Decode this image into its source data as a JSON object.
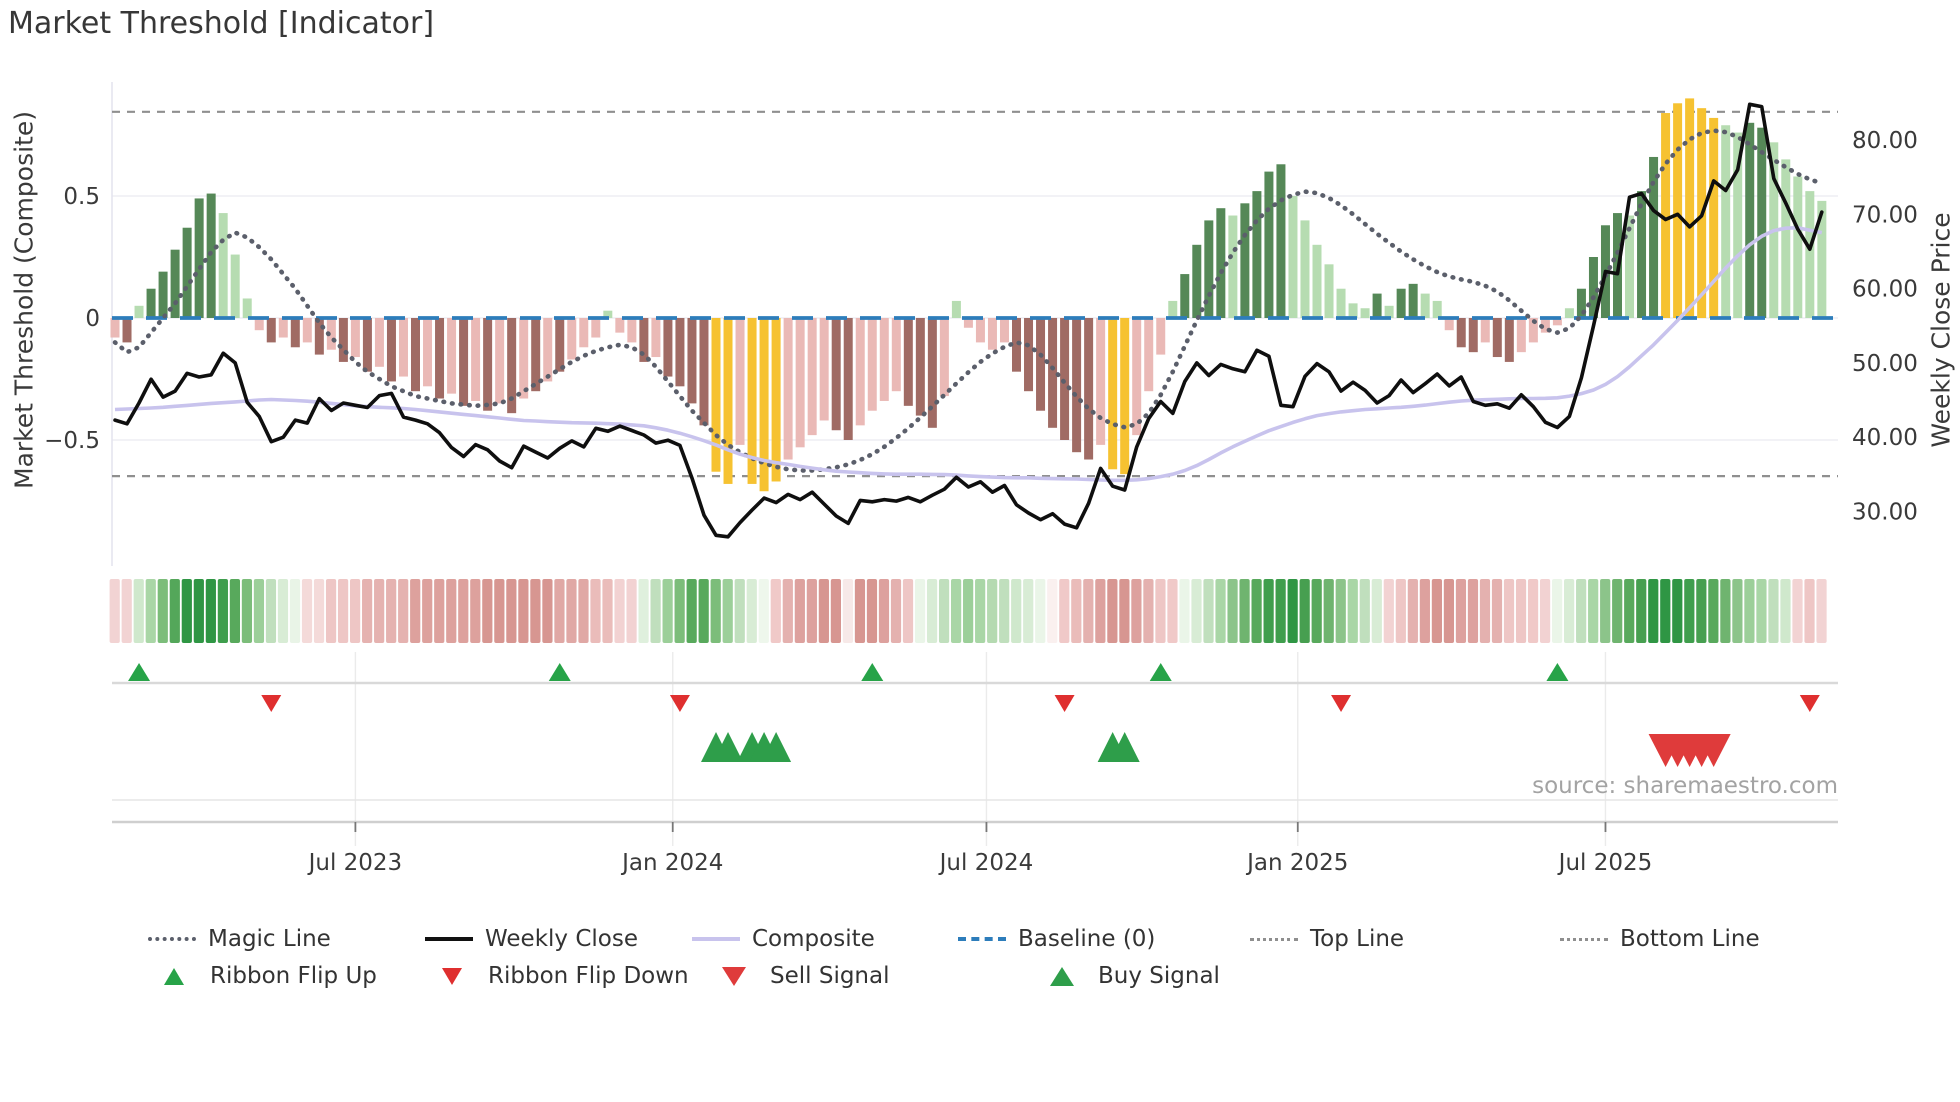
{
  "title": "Market Threshold [Indicator]",
  "source_text": "source: sharemaestro.com",
  "axes": {
    "left_label": "Market Threshold (Composite)",
    "right_label": "Weekly Close Price"
  },
  "legend": {
    "row1": [
      {
        "label": "Magic Line",
        "marker": "dotted-line",
        "color": "#5b5f6b"
      },
      {
        "label": "Weekly Close",
        "marker": "solid-line",
        "color": "#111111"
      },
      {
        "label": "Composite",
        "marker": "solid-line",
        "color": "#c8c3ed"
      },
      {
        "label": "Baseline (0)",
        "marker": "dashed-line",
        "color": "#2d7dbb"
      },
      {
        "label": "Top Line",
        "marker": "fine-dotted-line",
        "color": "#8f8f8f"
      },
      {
        "label": "Bottom Line",
        "marker": "fine-dotted-line",
        "color": "#8f8f8f"
      }
    ],
    "row2": [
      {
        "label": "Ribbon Flip Up",
        "marker": "triangle-up",
        "color": "#27a348"
      },
      {
        "label": "Ribbon Flip Down",
        "marker": "triangle-down",
        "color": "#df2f2f"
      },
      {
        "label": "Sell Signal",
        "marker": "triangle-down",
        "color": "#df3b3b"
      },
      {
        "label": "Buy Signal",
        "marker": "triangle-up",
        "color": "#2e9e4a"
      }
    ]
  },
  "chart_data": {
    "type": "bar",
    "title": "Market Threshold [Indicator]",
    "xlabel": "",
    "ylabel_left": "Market Threshold (Composite)",
    "ylabel_right": "Weekly Close Price",
    "weeks": 143,
    "left_ylim": [
      -1.03,
      0.97
    ],
    "right_ylim": [
      22,
      88
    ],
    "grid": "horizontal-faint",
    "legend_position": "bottom",
    "baseline": 0,
    "top_line": 0.845,
    "bottom_line": -0.648,
    "left_ticks": [
      {
        "label": "0.5",
        "value": 0.5
      },
      {
        "label": "0",
        "value": 0
      },
      {
        "label": "−0.5",
        "value": -0.5
      }
    ],
    "right_ticks": [
      {
        "label": "80.00",
        "value": 80
      },
      {
        "label": "70.00",
        "value": 70
      },
      {
        "label": "60.00",
        "value": 60
      },
      {
        "label": "50.00",
        "value": 50
      },
      {
        "label": "40.00",
        "value": 40
      },
      {
        "label": "30.00",
        "value": 30
      }
    ],
    "x_ticks": [
      {
        "label": "Jul 2023",
        "week": 20
      },
      {
        "label": "Jan 2024",
        "week": 46.4
      },
      {
        "label": "Jul 2024",
        "week": 72.5
      },
      {
        "label": "Jan 2025",
        "week": 98.4
      },
      {
        "label": "Jul 2025",
        "week": 124
      }
    ],
    "palette": {
      "dg": "#558857",
      "lg": "#b6dcb1",
      "pk": "#eab9b6",
      "br": "#a06b64",
      "gd": "#f6c231"
    },
    "colors": {
      "magic_line": "#5b5f6b",
      "weekly_close": "#0f0f0f",
      "composite": "#c8c3ed",
      "baseline": "#2d7dbb",
      "band_lines": "#8f8f8f",
      "grid": "#ededf4",
      "signal_up": "#27a348",
      "signal_down": "#df2f2f",
      "buy": "#2e9e4a",
      "sell": "#df3b3b",
      "source": "#a3a3a3",
      "axis_text": "#3a3a3a"
    },
    "series": [
      {
        "name": "Threshold bars",
        "kind": "bar",
        "axis": "left"
      },
      {
        "name": "Magic Line",
        "kind": "line-dotted",
        "axis": "left"
      },
      {
        "name": "Composite",
        "kind": "line",
        "axis": "left"
      },
      {
        "name": "Weekly Close",
        "kind": "line",
        "axis": "right"
      }
    ],
    "threshold_bars": {
      "values": [
        -0.08,
        -0.1,
        0.05,
        0.12,
        0.19,
        0.28,
        0.37,
        0.49,
        0.51,
        0.43,
        0.26,
        0.08,
        -0.05,
        -0.1,
        -0.08,
        -0.12,
        -0.1,
        -0.15,
        -0.13,
        -0.18,
        -0.16,
        -0.22,
        -0.2,
        -0.26,
        -0.24,
        -0.3,
        -0.28,
        -0.33,
        -0.31,
        -0.36,
        -0.34,
        -0.38,
        -0.35,
        -0.39,
        -0.33,
        -0.3,
        -0.26,
        -0.22,
        -0.17,
        -0.12,
        -0.08,
        0.03,
        -0.06,
        -0.1,
        -0.18,
        -0.16,
        -0.24,
        -0.28,
        -0.35,
        -0.44,
        -0.63,
        -0.68,
        -0.52,
        -0.68,
        -0.71,
        -0.67,
        -0.58,
        -0.53,
        -0.48,
        -0.42,
        -0.46,
        -0.5,
        -0.44,
        -0.38,
        -0.34,
        -0.3,
        -0.36,
        -0.4,
        -0.45,
        -0.32,
        0.07,
        -0.04,
        -0.1,
        -0.13,
        -0.1,
        -0.22,
        -0.3,
        -0.38,
        -0.45,
        -0.5,
        -0.55,
        -0.58,
        -0.52,
        -0.62,
        -0.64,
        -0.48,
        -0.3,
        -0.15,
        0.07,
        0.18,
        0.3,
        0.4,
        0.45,
        0.42,
        0.47,
        0.52,
        0.6,
        0.63,
        0.5,
        0.4,
        0.3,
        0.22,
        0.12,
        0.06,
        0.04,
        0.1,
        0.05,
        0.12,
        0.14,
        0.1,
        0.07,
        -0.05,
        -0.12,
        -0.14,
        -0.1,
        -0.16,
        -0.18,
        -0.14,
        -0.1,
        -0.06,
        -0.03,
        0.04,
        0.12,
        0.25,
        0.38,
        0.43,
        0.42,
        0.52,
        0.66,
        0.84,
        0.88,
        0.9,
        0.86,
        0.82,
        0.79,
        0.76,
        0.8,
        0.78,
        0.72,
        0.65,
        0.58,
        0.52,
        0.48
      ],
      "colors": [
        "pk",
        "br",
        "lg",
        "dg",
        "dg",
        "dg",
        "dg",
        "dg",
        "dg",
        "lg",
        "lg",
        "lg",
        "pk",
        "br",
        "pk",
        "br",
        "pk",
        "br",
        "pk",
        "br",
        "pk",
        "br",
        "pk",
        "br",
        "pk",
        "br",
        "pk",
        "br",
        "pk",
        "br",
        "pk",
        "br",
        "pk",
        "br",
        "pk",
        "br",
        "pk",
        "br",
        "pk",
        "pk",
        "pk",
        "lg",
        "pk",
        "pk",
        "br",
        "pk",
        "br",
        "br",
        "br",
        "br",
        "gd",
        "gd",
        "pk",
        "gd",
        "gd",
        "gd",
        "pk",
        "pk",
        "pk",
        "pk",
        "br",
        "br",
        "pk",
        "pk",
        "pk",
        "pk",
        "br",
        "br",
        "br",
        "pk",
        "lg",
        "pk",
        "pk",
        "pk",
        "pk",
        "br",
        "br",
        "br",
        "br",
        "br",
        "br",
        "br",
        "pk",
        "gd",
        "gd",
        "pk",
        "pk",
        "pk",
        "lg",
        "dg",
        "dg",
        "dg",
        "dg",
        "lg",
        "dg",
        "dg",
        "dg",
        "dg",
        "lg",
        "lg",
        "lg",
        "lg",
        "lg",
        "lg",
        "lg",
        "dg",
        "lg",
        "dg",
        "dg",
        "lg",
        "lg",
        "pk",
        "br",
        "br",
        "pk",
        "br",
        "br",
        "pk",
        "pk",
        "pk",
        "pk",
        "lg",
        "dg",
        "dg",
        "dg",
        "dg",
        "lg",
        "dg",
        "dg",
        "gd",
        "gd",
        "gd",
        "gd",
        "gd",
        "lg",
        "lg",
        "dg",
        "dg",
        "lg",
        "lg",
        "lg",
        "lg",
        "lg"
      ]
    },
    "magic_line": [
      -0.1,
      -0.14,
      -0.12,
      -0.06,
      0.0,
      0.06,
      0.13,
      0.2,
      0.27,
      0.32,
      0.35,
      0.33,
      0.29,
      0.24,
      0.18,
      0.12,
      0.05,
      -0.02,
      -0.08,
      -0.13,
      -0.18,
      -0.22,
      -0.25,
      -0.28,
      -0.3,
      -0.32,
      -0.33,
      -0.34,
      -0.35,
      -0.355,
      -0.36,
      -0.356,
      -0.35,
      -0.33,
      -0.3,
      -0.27,
      -0.24,
      -0.21,
      -0.18,
      -0.155,
      -0.135,
      -0.12,
      -0.11,
      -0.12,
      -0.15,
      -0.2,
      -0.26,
      -0.32,
      -0.38,
      -0.43,
      -0.48,
      -0.52,
      -0.55,
      -0.575,
      -0.595,
      -0.61,
      -0.62,
      -0.625,
      -0.625,
      -0.62,
      -0.612,
      -0.6,
      -0.582,
      -0.558,
      -0.528,
      -0.492,
      -0.452,
      -0.408,
      -0.362,
      -0.315,
      -0.268,
      -0.222,
      -0.18,
      -0.145,
      -0.118,
      -0.1,
      -0.112,
      -0.15,
      -0.205,
      -0.265,
      -0.322,
      -0.372,
      -0.41,
      -0.435,
      -0.448,
      -0.435,
      -0.39,
      -0.315,
      -0.22,
      -0.115,
      -0.01,
      0.09,
      0.185,
      0.268,
      0.34,
      0.4,
      0.448,
      0.482,
      0.505,
      0.518,
      0.512,
      0.492,
      0.462,
      0.425,
      0.385,
      0.345,
      0.308,
      0.272,
      0.24,
      0.212,
      0.188,
      0.17,
      0.158,
      0.148,
      0.132,
      0.108,
      0.072,
      0.03,
      -0.012,
      -0.045,
      -0.06,
      -0.042,
      0.01,
      0.085,
      0.172,
      0.268,
      0.368,
      0.468,
      0.558,
      0.632,
      0.69,
      0.732,
      0.758,
      0.768,
      0.762,
      0.742,
      0.712,
      0.68,
      0.648,
      0.618,
      0.59,
      0.568,
      0.552
    ],
    "composite": [
      -0.375,
      -0.373,
      -0.371,
      -0.369,
      -0.366,
      -0.362,
      -0.358,
      -0.354,
      -0.35,
      -0.347,
      -0.344,
      -0.34,
      -0.336,
      -0.334,
      -0.336,
      -0.338,
      -0.341,
      -0.345,
      -0.35,
      -0.355,
      -0.36,
      -0.363,
      -0.366,
      -0.368,
      -0.371,
      -0.375,
      -0.38,
      -0.385,
      -0.39,
      -0.395,
      -0.4,
      -0.405,
      -0.41,
      -0.415,
      -0.42,
      -0.422,
      -0.425,
      -0.427,
      -0.429,
      -0.43,
      -0.431,
      -0.433,
      -0.435,
      -0.438,
      -0.442,
      -0.45,
      -0.46,
      -0.472,
      -0.487,
      -0.503,
      -0.52,
      -0.54,
      -0.558,
      -0.572,
      -0.584,
      -0.593,
      -0.6,
      -0.608,
      -0.615,
      -0.622,
      -0.628,
      -0.631,
      -0.634,
      -0.637,
      -0.639,
      -0.64,
      -0.64,
      -0.64,
      -0.641,
      -0.642,
      -0.644,
      -0.647,
      -0.65,
      -0.652,
      -0.654,
      -0.655,
      -0.655,
      -0.657,
      -0.658,
      -0.659,
      -0.66,
      -0.662,
      -0.664,
      -0.665,
      -0.665,
      -0.663,
      -0.658,
      -0.65,
      -0.64,
      -0.625,
      -0.605,
      -0.58,
      -0.553,
      -0.528,
      -0.505,
      -0.483,
      -0.462,
      -0.445,
      -0.428,
      -0.413,
      -0.4,
      -0.392,
      -0.385,
      -0.38,
      -0.375,
      -0.372,
      -0.369,
      -0.366,
      -0.362,
      -0.357,
      -0.351,
      -0.345,
      -0.34,
      -0.337,
      -0.335,
      -0.333,
      -0.331,
      -0.33,
      -0.33,
      -0.329,
      -0.327,
      -0.32,
      -0.31,
      -0.295,
      -0.272,
      -0.24,
      -0.2,
      -0.155,
      -0.11,
      -0.06,
      -0.01,
      0.042,
      0.095,
      0.15,
      0.205,
      0.255,
      0.3,
      0.335,
      0.358,
      0.368,
      0.37,
      0.36,
      0.35
    ],
    "weekly_close": [
      42.3,
      41.8,
      44.6,
      47.8,
      45.4,
      46.2,
      48.6,
      48.1,
      48.4,
      51.3,
      50.0,
      44.7,
      42.8,
      39.4,
      40.0,
      42.3,
      41.9,
      45.2,
      43.6,
      44.6,
      44.3,
      44.0,
      45.6,
      45.9,
      42.7,
      42.3,
      41.8,
      40.6,
      38.6,
      37.4,
      39.0,
      38.3,
      36.8,
      35.9,
      38.8,
      38.0,
      37.2,
      38.5,
      39.5,
      38.7,
      41.2,
      40.8,
      41.5,
      40.9,
      40.3,
      39.2,
      39.6,
      38.9,
      34.5,
      29.5,
      26.8,
      26.6,
      28.5,
      30.2,
      31.8,
      31.2,
      32.3,
      31.6,
      32.6,
      31.0,
      29.4,
      28.4,
      31.5,
      31.3,
      31.6,
      31.4,
      31.9,
      31.3,
      32.2,
      33.0,
      34.6,
      33.3,
      34.0,
      32.6,
      33.5,
      30.9,
      29.8,
      28.9,
      29.7,
      28.3,
      27.8,
      31.1,
      35.8,
      33.4,
      32.9,
      38.7,
      42.5,
      44.8,
      43.2,
      47.5,
      50.0,
      48.3,
      49.8,
      49.2,
      48.8,
      51.7,
      50.9,
      44.3,
      44.1,
      48.2,
      49.9,
      48.8,
      46.2,
      47.4,
      46.3,
      44.6,
      45.6,
      47.7,
      46.0,
      47.2,
      48.5,
      46.9,
      48.1,
      44.8,
      44.3,
      44.5,
      43.9,
      45.7,
      44.1,
      42.0,
      41.3,
      42.8,
      48.0,
      55.0,
      62.3,
      62.0,
      72.3,
      72.8,
      70.5,
      69.3,
      70.0,
      68.3,
      69.8,
      74.5,
      73.2,
      76.0,
      84.8,
      84.5,
      74.8,
      71.5,
      68.0,
      65.3,
      70.3
    ],
    "ribbon": [
      {
        "n": 2,
        "c": "#f2d3d3"
      },
      {
        "n": 1,
        "c": "#cfe8cc"
      },
      {
        "n": 1,
        "c": "#a9d6a6"
      },
      {
        "n": 1,
        "c": "#7cbd7a"
      },
      {
        "n": 1,
        "c": "#54a75a"
      },
      {
        "n": 3,
        "c": "#2f9644"
      },
      {
        "n": 1,
        "c": "#3f9e4d"
      },
      {
        "n": 1,
        "c": "#58a95c"
      },
      {
        "n": 1,
        "c": "#7cbd7a"
      },
      {
        "n": 1,
        "c": "#9ccf99"
      },
      {
        "n": 1,
        "c": "#c0dfbd"
      },
      {
        "n": 1,
        "c": "#d8ecd5"
      },
      {
        "n": 1,
        "c": "#e9f4e7"
      },
      {
        "n": 2,
        "c": "#f4dad9"
      },
      {
        "n": 3,
        "c": "#eec6c5"
      },
      {
        "n": 4,
        "c": "#e5b2b0"
      },
      {
        "n": 6,
        "c": "#dda19d"
      },
      {
        "n": 6,
        "c": "#d79691"
      },
      {
        "n": 3,
        "c": "#e0a8a5"
      },
      {
        "n": 2,
        "c": "#eabcba"
      },
      {
        "n": 2,
        "c": "#f2d2d2"
      },
      {
        "n": 1,
        "c": "#dff0dd"
      },
      {
        "n": 1,
        "c": "#c0dfbd"
      },
      {
        "n": 1,
        "c": "#9ccf99"
      },
      {
        "n": 1,
        "c": "#7cbd7a"
      },
      {
        "n": 2,
        "c": "#58a95c"
      },
      {
        "n": 1,
        "c": "#7cbd7a"
      },
      {
        "n": 1,
        "c": "#9ccf99"
      },
      {
        "n": 1,
        "c": "#c0dfbd"
      },
      {
        "n": 1,
        "c": "#d8ecd5"
      },
      {
        "n": 1,
        "c": "#eef7ec"
      },
      {
        "n": 1,
        "c": "#f0c9c8"
      },
      {
        "n": 1,
        "c": "#e4b1af"
      },
      {
        "n": 2,
        "c": "#dda19e"
      },
      {
        "n": 2,
        "c": "#d79691"
      },
      {
        "n": 1,
        "c": "#f7e9e8"
      },
      {
        "n": 2,
        "c": "#d79691"
      },
      {
        "n": 1,
        "c": "#dda19e"
      },
      {
        "n": 1,
        "c": "#e4b1af"
      },
      {
        "n": 1,
        "c": "#eec6c5"
      },
      {
        "n": 1,
        "c": "#eaf5e8"
      },
      {
        "n": 1,
        "c": "#d8ecd5"
      },
      {
        "n": 1,
        "c": "#c0dfbd"
      },
      {
        "n": 1,
        "c": "#a9d6a6"
      },
      {
        "n": 1,
        "c": "#9ccf99"
      },
      {
        "n": 1,
        "c": "#a9d6a6"
      },
      {
        "n": 1,
        "c": "#b5dab1"
      },
      {
        "n": 1,
        "c": "#c0dfbd"
      },
      {
        "n": 1,
        "c": "#cfe8cc"
      },
      {
        "n": 1,
        "c": "#d8ecd5"
      },
      {
        "n": 1,
        "c": "#eaf5e8"
      },
      {
        "n": 1,
        "c": "#faf0ef"
      },
      {
        "n": 1,
        "c": "#f0c9c8"
      },
      {
        "n": 1,
        "c": "#eabcba"
      },
      {
        "n": 1,
        "c": "#e4b1af"
      },
      {
        "n": 1,
        "c": "#dda19e"
      },
      {
        "n": 2,
        "c": "#d79691"
      },
      {
        "n": 1,
        "c": "#dda19e"
      },
      {
        "n": 1,
        "c": "#e4b1af"
      },
      {
        "n": 1,
        "c": "#eec6c5"
      },
      {
        "n": 1,
        "c": "#f0c9c8"
      },
      {
        "n": 1,
        "c": "#eaf5e8"
      },
      {
        "n": 1,
        "c": "#d8ecd5"
      },
      {
        "n": 1,
        "c": "#c0dfbd"
      },
      {
        "n": 1,
        "c": "#a9d6a6"
      },
      {
        "n": 1,
        "c": "#8cc48a"
      },
      {
        "n": 1,
        "c": "#6fb46f"
      },
      {
        "n": 1,
        "c": "#58a95c"
      },
      {
        "n": 2,
        "c": "#3f9e4d"
      },
      {
        "n": 1,
        "c": "#2f9644"
      },
      {
        "n": 1,
        "c": "#479f50"
      },
      {
        "n": 1,
        "c": "#58a95c"
      },
      {
        "n": 1,
        "c": "#6fb46f"
      },
      {
        "n": 1,
        "c": "#8cc48a"
      },
      {
        "n": 1,
        "c": "#a9d6a6"
      },
      {
        "n": 1,
        "c": "#c0dfbd"
      },
      {
        "n": 1,
        "c": "#d8ecd5"
      },
      {
        "n": 1,
        "c": "#f2d2d2"
      },
      {
        "n": 1,
        "c": "#eec6c5"
      },
      {
        "n": 1,
        "c": "#e4b1af"
      },
      {
        "n": 1,
        "c": "#dda19e"
      },
      {
        "n": 2,
        "c": "#d79691"
      },
      {
        "n": 2,
        "c": "#dda19e"
      },
      {
        "n": 2,
        "c": "#e4b1af"
      },
      {
        "n": 2,
        "c": "#eec6c5"
      },
      {
        "n": 1,
        "c": "#f0c9c8"
      },
      {
        "n": 1,
        "c": "#f2d2d2"
      },
      {
        "n": 1,
        "c": "#eaf5e8"
      },
      {
        "n": 1,
        "c": "#d8ecd5"
      },
      {
        "n": 1,
        "c": "#c0dfbd"
      },
      {
        "n": 1,
        "c": "#a9d6a6"
      },
      {
        "n": 1,
        "c": "#8cc48a"
      },
      {
        "n": 1,
        "c": "#6fb46f"
      },
      {
        "n": 1,
        "c": "#58a95c"
      },
      {
        "n": 1,
        "c": "#479f50"
      },
      {
        "n": 3,
        "c": "#2f9644"
      },
      {
        "n": 1,
        "c": "#3f9e4d"
      },
      {
        "n": 1,
        "c": "#479f50"
      },
      {
        "n": 1,
        "c": "#58a95c"
      },
      {
        "n": 1,
        "c": "#6fb46f"
      },
      {
        "n": 1,
        "c": "#8cc48a"
      },
      {
        "n": 1,
        "c": "#9ccf99"
      },
      {
        "n": 1,
        "c": "#a9d6a6"
      },
      {
        "n": 1,
        "c": "#c0dfbd"
      },
      {
        "n": 1,
        "c": "#cfe8cc"
      },
      {
        "n": 1,
        "c": "#f2d3d3"
      },
      {
        "n": 1,
        "c": "#eec6c5"
      },
      {
        "n": 1,
        "c": "#f2d3d3"
      }
    ],
    "signals": {
      "ribbon_flip_up_weeks": [
        2,
        37,
        63,
        87,
        120
      ],
      "ribbon_flip_down_weeks": [
        13,
        47,
        79,
        102,
        141
      ],
      "buy_signal_weeks": [
        50,
        51,
        53,
        54,
        55,
        83,
        84
      ],
      "sell_signal_weeks": [
        129,
        130,
        131,
        132,
        133
      ]
    }
  }
}
